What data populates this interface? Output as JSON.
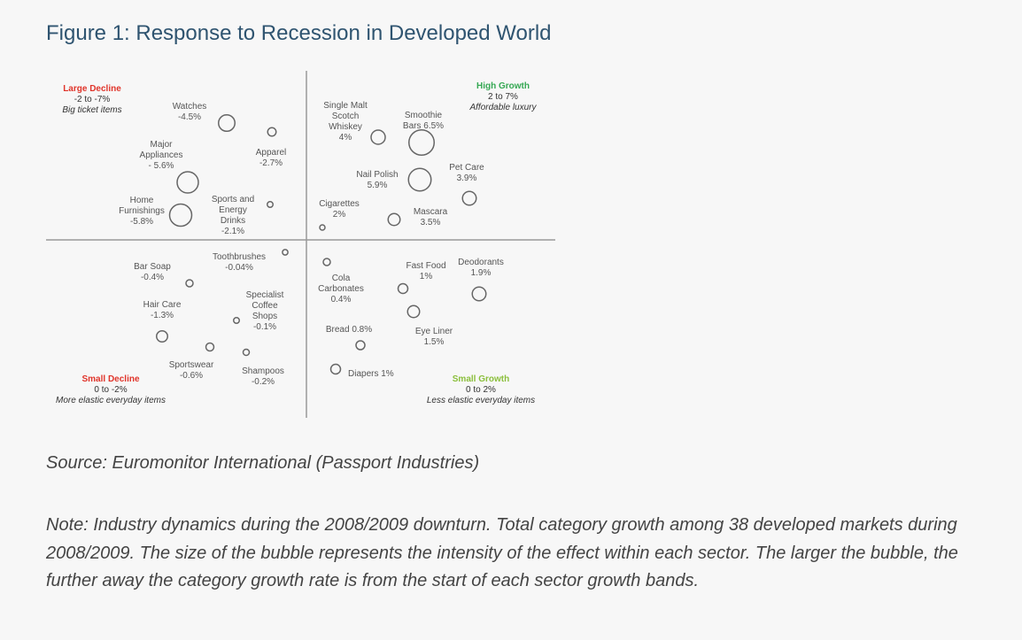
{
  "figure": {
    "title": "Figure 1: Response to Recession in Developed World",
    "source": "Source: Euromonitor International (Passport Industries)",
    "note": "Note: Industry dynamics during the 2008/2009 downturn. Total category growth among 38 developed markets during 2008/2009. The size of the bubble represents the intensity of the effect within each sector. The larger the bubble, the further away the category growth rate is from the start of each sector growth bands."
  },
  "colors": {
    "title": "#2f5470",
    "large_decline": "#e0342a",
    "high_growth": "#35a853",
    "small_decline": "#e0342a",
    "small_growth": "#8bbf3c",
    "bubble": "#666666",
    "axis": "#999999"
  },
  "chart_data": {
    "type": "scatter",
    "quadrants": [
      {
        "name": "Large Decline",
        "range": "-2 to -7%",
        "desc": "Big ticket items",
        "position": "top-left"
      },
      {
        "name": "High Growth",
        "range": "2 to 7%",
        "desc": "Affordable luxury",
        "position": "top-right"
      },
      {
        "name": "Small Decline",
        "range": "0 to -2%",
        "desc": "More elastic everyday items",
        "position": "bottom-left"
      },
      {
        "name": "Small Growth",
        "range": "0 to 2%",
        "desc": "Less elastic everyday items",
        "position": "bottom-right"
      }
    ],
    "points": [
      {
        "quadrant": "top-left",
        "label": [
          "Watches",
          "-4.5%"
        ],
        "growth": -4.5,
        "intensity": 2.5
      },
      {
        "quadrant": "top-left",
        "label": [
          "Apparel",
          "-2.7%"
        ],
        "growth": -2.7,
        "intensity": 0.7
      },
      {
        "quadrant": "top-left",
        "label": [
          "Major",
          "Appliances",
          "- 5.6%"
        ],
        "growth": -5.6,
        "intensity": 3.6
      },
      {
        "quadrant": "top-left",
        "label": [
          "Home",
          "Furnishings",
          "-5.8%"
        ],
        "growth": -5.8,
        "intensity": 3.8
      },
      {
        "quadrant": "top-left",
        "label": [
          "Sports and",
          "Energy",
          "Drinks",
          "-2.1%"
        ],
        "growth": -2.1,
        "intensity": 0.1
      },
      {
        "quadrant": "top-right",
        "label": [
          "Single Malt",
          "Scotch",
          "Whiskey",
          "4%"
        ],
        "growth": 4,
        "intensity": 2
      },
      {
        "quadrant": "top-right",
        "label": [
          "Smoothie",
          "Bars 6.5%"
        ],
        "growth": 6.5,
        "intensity": 4.5
      },
      {
        "quadrant": "top-right",
        "label": [
          "Nail Polish",
          "5.9%"
        ],
        "growth": 5.9,
        "intensity": 3.9
      },
      {
        "quadrant": "top-right",
        "label": [
          "Pet Care",
          "3.9%"
        ],
        "growth": 3.9,
        "intensity": 1.9
      },
      {
        "quadrant": "top-right",
        "label": [
          "Cigarettes",
          "2%"
        ],
        "growth": 2,
        "intensity": 0
      },
      {
        "quadrant": "top-right",
        "label": [
          "Mascara",
          "3.5%"
        ],
        "growth": 3.5,
        "intensity": 1.5
      },
      {
        "quadrant": "bottom-left",
        "label": [
          "Toothbrushes",
          "-0.04%"
        ],
        "growth": -0.04,
        "intensity": 0.04
      },
      {
        "quadrant": "bottom-left",
        "label": [
          "Bar Soap",
          "-0.4%"
        ],
        "growth": -0.4,
        "intensity": 0.4
      },
      {
        "quadrant": "bottom-left",
        "label": [
          "Specialist",
          "Coffee",
          "Shops",
          "-0.1%"
        ],
        "growth": -0.1,
        "intensity": 0.1
      },
      {
        "quadrant": "bottom-left",
        "label": [
          "Hair Care",
          "-1.3%"
        ],
        "growth": -1.3,
        "intensity": 1.3
      },
      {
        "quadrant": "bottom-left",
        "label": [
          "Sportswear",
          "-0.6%"
        ],
        "growth": -0.6,
        "intensity": 0.6
      },
      {
        "quadrant": "bottom-left",
        "label": [
          "Shampoos",
          "-0.2%"
        ],
        "growth": -0.2,
        "intensity": 0.2
      },
      {
        "quadrant": "bottom-right",
        "label": [
          "Cola",
          "Carbonates",
          "0.4%"
        ],
        "growth": 0.4,
        "intensity": 0.4
      },
      {
        "quadrant": "bottom-right",
        "label": [
          "Fast Food",
          "1%"
        ],
        "growth": 1,
        "intensity": 1
      },
      {
        "quadrant": "bottom-right",
        "label": [
          "Deodorants",
          "1.9%"
        ],
        "growth": 1.9,
        "intensity": 1.9
      },
      {
        "quadrant": "bottom-right",
        "label": [
          "Eye Liner",
          "1.5%"
        ],
        "growth": 1.5,
        "intensity": 1.5
      },
      {
        "quadrant": "bottom-right",
        "label": [
          "Bread 0.8%"
        ],
        "growth": 0.8,
        "intensity": 0.8
      },
      {
        "quadrant": "bottom-right",
        "label": [
          "Diapers 1%"
        ],
        "growth": 1,
        "intensity": 1
      }
    ]
  }
}
